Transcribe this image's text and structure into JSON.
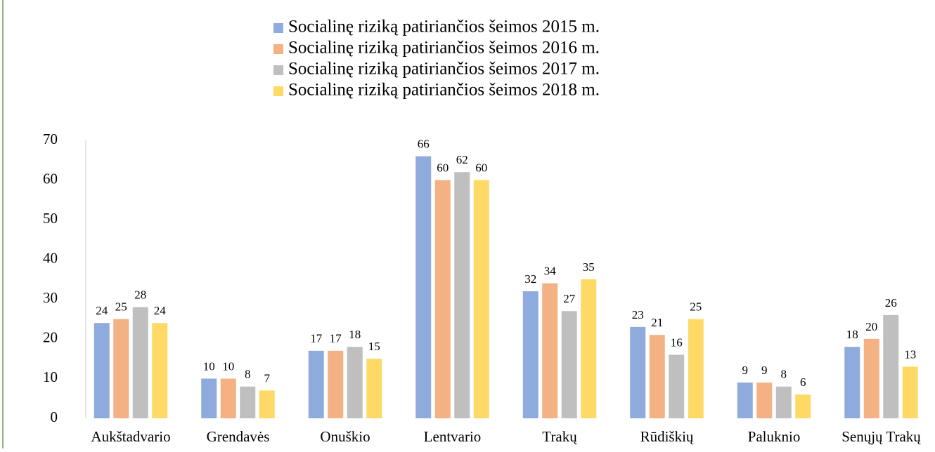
{
  "chart_data": {
    "type": "bar",
    "categories": [
      "Aukštadvario",
      "Grendavės",
      "Onuškio",
      "Lentvario",
      "Trakų",
      "Rūdiškių",
      "Paluknio",
      "Senųjų Trakų"
    ],
    "series": [
      {
        "name": "Socialinę riziką patiriančios šeimos 2015 m.",
        "color": "#8faadc",
        "values": [
          24,
          10,
          17,
          66,
          32,
          23,
          9,
          18
        ]
      },
      {
        "name": "Socialinę riziką patiriančios šeimos 2016 m.",
        "color": "#f4b183",
        "values": [
          25,
          10,
          17,
          60,
          34,
          21,
          9,
          20
        ]
      },
      {
        "name": "Socialinę riziką patiriančios šeimos 2017 m.",
        "color": "#bfbfbf",
        "values": [
          28,
          8,
          18,
          62,
          27,
          16,
          8,
          26
        ]
      },
      {
        "name": "Socialinę riziką patiriančios šeimos 2018 m.",
        "color": "#ffd966",
        "values": [
          24,
          7,
          15,
          60,
          35,
          25,
          6,
          13
        ]
      }
    ],
    "ylim": [
      0,
      70
    ],
    "yticks": [
      0,
      10,
      20,
      30,
      40,
      50,
      60,
      70
    ],
    "grid": false,
    "legend": "top"
  }
}
